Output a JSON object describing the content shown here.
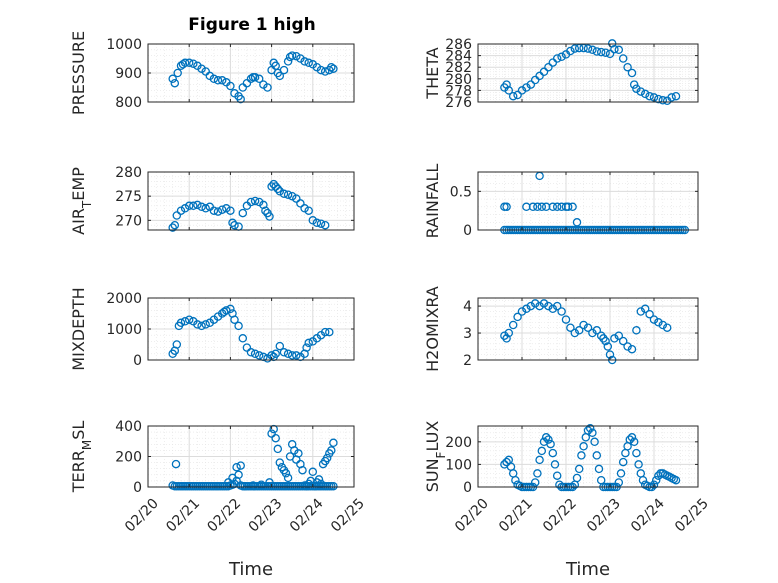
{
  "figure": {
    "title": "Figure 1 high",
    "marker_color": "#0072BD",
    "grid_color": "#dcdcdc",
    "axes_color": "#262626"
  },
  "chart_data": [
    {
      "id": "pressure",
      "type": "scatter",
      "ylabel": "PRESSURE",
      "ylim": [
        800,
        1000
      ],
      "yticks": [
        800,
        900,
        1000
      ],
      "ytick_labels": [
        "800",
        "900",
        "1000"
      ],
      "xlim": [
        0,
        5
      ],
      "grid": true,
      "show_xticklabels": false,
      "x": [
        0.6,
        0.65,
        0.72,
        0.8,
        0.85,
        0.9,
        1.0,
        1.1,
        1.2,
        1.3,
        1.4,
        1.5,
        1.6,
        1.7,
        1.8,
        1.9,
        2.0,
        2.1,
        2.2,
        2.25,
        2.3,
        2.4,
        2.5,
        2.55,
        2.6,
        2.7,
        2.8,
        2.9,
        3.0,
        3.05,
        3.1,
        3.15,
        3.2,
        3.3,
        3.4,
        3.45,
        3.5,
        3.6,
        3.7,
        3.8,
        3.9,
        4.0,
        4.1,
        4.2,
        4.3,
        4.4,
        4.45,
        4.5
      ],
      "y": [
        880,
        865,
        900,
        925,
        930,
        935,
        935,
        932,
        925,
        915,
        905,
        890,
        880,
        875,
        875,
        868,
        855,
        830,
        820,
        810,
        850,
        865,
        880,
        885,
        885,
        880,
        860,
        850,
        910,
        935,
        925,
        900,
        890,
        910,
        940,
        955,
        960,
        958,
        950,
        940,
        935,
        930,
        920,
        910,
        905,
        910,
        920,
        915
      ]
    },
    {
      "id": "theta",
      "type": "scatter",
      "ylabel": "THETA",
      "ylim": [
        276,
        286
      ],
      "yticks": [
        276,
        278,
        280,
        282,
        284,
        286
      ],
      "ytick_labels": [
        "276",
        "278",
        "280",
        "282",
        "284",
        "286"
      ],
      "xlim": [
        0,
        5
      ],
      "grid": true,
      "show_xticklabels": false,
      "x": [
        0.6,
        0.65,
        0.7,
        0.8,
        0.9,
        1.0,
        1.1,
        1.2,
        1.3,
        1.4,
        1.5,
        1.6,
        1.7,
        1.8,
        1.9,
        2.0,
        2.1,
        2.2,
        2.3,
        2.4,
        2.5,
        2.6,
        2.7,
        2.8,
        2.9,
        3.0,
        3.05,
        3.1,
        3.2,
        3.3,
        3.4,
        3.5,
        3.55,
        3.6,
        3.7,
        3.8,
        3.9,
        4.0,
        4.1,
        4.2,
        4.3,
        4.4,
        4.5
      ],
      "y": [
        278.5,
        279,
        278,
        277,
        277.2,
        278,
        278.5,
        279,
        279.8,
        280.5,
        281.2,
        282,
        282.8,
        283.5,
        283.8,
        284.2,
        284.8,
        285.2,
        285.3,
        285.3,
        285.2,
        285.0,
        284.7,
        284.6,
        284.5,
        284.3,
        286.1,
        285.1,
        285.0,
        283.5,
        282,
        281,
        279,
        278.3,
        277.8,
        277.4,
        277.0,
        276.8,
        276.5,
        276.3,
        276.2,
        276.8,
        277.0
      ]
    },
    {
      "id": "air_temp",
      "type": "scatter",
      "ylabel": "AIR",
      "ylabel_sub": "T",
      "ylabel_tail": "EMP",
      "ylim": [
        268,
        280
      ],
      "yticks": [
        270,
        275,
        280
      ],
      "ytick_labels": [
        "270",
        "275",
        "280"
      ],
      "xlim": [
        0,
        5
      ],
      "grid": true,
      "show_xticklabels": false,
      "x": [
        0.6,
        0.65,
        0.7,
        0.8,
        0.9,
        1.0,
        1.1,
        1.2,
        1.3,
        1.4,
        1.5,
        1.6,
        1.7,
        1.8,
        1.9,
        2.0,
        2.05,
        2.1,
        2.2,
        2.3,
        2.4,
        2.5,
        2.6,
        2.7,
        2.8,
        2.85,
        2.9,
        2.95,
        3.0,
        3.05,
        3.1,
        3.15,
        3.2,
        3.3,
        3.4,
        3.5,
        3.6,
        3.7,
        3.8,
        3.9,
        4.0,
        4.1,
        4.2,
        4.3
      ],
      "y": [
        268.5,
        269,
        271,
        272,
        272.5,
        273,
        273,
        273.2,
        272.8,
        272.5,
        272.8,
        272,
        271.8,
        272.2,
        272.5,
        272.0,
        269.5,
        269.0,
        268.7,
        271.5,
        273.0,
        273.8,
        274.0,
        273.8,
        273.2,
        272,
        271.5,
        270.8,
        277.0,
        277.5,
        277.0,
        276.5,
        276.0,
        275.5,
        275.3,
        275.0,
        274.5,
        273.5,
        272.5,
        272.0,
        270.0,
        269.5,
        269.3,
        269.0
      ]
    },
    {
      "id": "rainfall",
      "type": "scatter",
      "ylabel": "RAINFALL",
      "ylim": [
        0,
        0.75
      ],
      "yticks": [
        0,
        0.5
      ],
      "ytick_labels": [
        "0",
        "0.5"
      ],
      "xlim": [
        0,
        5
      ],
      "grid": true,
      "show_xticklabels": false,
      "x": [
        0.6,
        0.65,
        0.7,
        0.75,
        0.8,
        0.85,
        0.9,
        0.95,
        1.0,
        1.05,
        1.1,
        1.15,
        1.2,
        1.25,
        1.3,
        1.35,
        1.4,
        1.45,
        1.5,
        1.55,
        1.6,
        1.65,
        1.7,
        1.75,
        1.8,
        1.85,
        1.9,
        1.95,
        2.0,
        2.05,
        2.1,
        2.15,
        2.2,
        2.25,
        2.3,
        2.35,
        2.4,
        2.45,
        2.5,
        2.55,
        2.6,
        2.65,
        2.7,
        2.75,
        2.8,
        2.85,
        2.9,
        2.95,
        3.0,
        3.05,
        3.1,
        3.15,
        3.2,
        3.25,
        3.3,
        3.35,
        3.4,
        3.45,
        3.5,
        3.55,
        3.6,
        3.65,
        3.7,
        3.75,
        3.8,
        3.85,
        3.9,
        3.95,
        4.0,
        4.05,
        4.1,
        4.15,
        4.2,
        4.25,
        4.3,
        4.35,
        4.4,
        4.45,
        4.5,
        4.55,
        4.6,
        4.65,
        4.7,
        0.6,
        0.65,
        1.1,
        1.25,
        1.35,
        1.45,
        1.55,
        1.7,
        1.8,
        1.9,
        2.0,
        2.05,
        2.15,
        2.25,
        1.4
      ],
      "y": [
        0,
        0,
        0,
        0,
        0,
        0,
        0,
        0,
        0,
        0,
        0,
        0,
        0,
        0,
        0,
        0,
        0,
        0,
        0,
        0,
        0,
        0,
        0,
        0,
        0,
        0,
        0,
        0,
        0,
        0,
        0,
        0,
        0,
        0,
        0,
        0,
        0,
        0,
        0,
        0,
        0,
        0,
        0,
        0,
        0,
        0,
        0,
        0,
        0,
        0,
        0,
        0,
        0,
        0,
        0,
        0,
        0,
        0,
        0,
        0,
        0,
        0,
        0,
        0,
        0,
        0,
        0,
        0,
        0,
        0,
        0,
        0,
        0,
        0,
        0,
        0,
        0,
        0,
        0,
        0,
        0,
        0,
        0,
        0.3,
        0.3,
        0.3,
        0.3,
        0.3,
        0.3,
        0.3,
        0.3,
        0.3,
        0.3,
        0.3,
        0.3,
        0.3,
        0.1,
        0.7
      ]
    },
    {
      "id": "mixdepth",
      "type": "scatter",
      "ylabel": "MIXDEPTH",
      "ylim": [
        0,
        2000
      ],
      "yticks": [
        0,
        1000,
        2000
      ],
      "ytick_labels": [
        "0",
        "1000",
        "2000"
      ],
      "xlim": [
        0,
        5
      ],
      "grid": true,
      "show_xticklabels": false,
      "x": [
        0.6,
        0.65,
        0.7,
        0.75,
        0.8,
        0.9,
        1.0,
        1.1,
        1.2,
        1.3,
        1.4,
        1.5,
        1.6,
        1.7,
        1.8,
        1.85,
        1.9,
        2.0,
        2.05,
        2.1,
        2.2,
        2.3,
        2.4,
        2.5,
        2.6,
        2.7,
        2.8,
        2.9,
        3.0,
        3.05,
        3.1,
        3.2,
        3.3,
        3.4,
        3.5,
        3.6,
        3.7,
        3.8,
        3.85,
        3.9,
        4.0,
        4.1,
        4.2,
        4.3,
        4.4
      ],
      "y": [
        200,
        300,
        500,
        1100,
        1200,
        1250,
        1300,
        1250,
        1150,
        1100,
        1150,
        1200,
        1300,
        1400,
        1500,
        1550,
        1600,
        1650,
        1500,
        1300,
        1100,
        700,
        400,
        250,
        200,
        150,
        100,
        50,
        150,
        100,
        200,
        450,
        250,
        200,
        150,
        150,
        100,
        200,
        400,
        550,
        600,
        700,
        800,
        900,
        900
      ]
    },
    {
      "id": "h2omixra",
      "type": "scatter",
      "ylabel": "H2OMIXRA",
      "ylim": [
        2,
        4.3
      ],
      "yticks": [
        2,
        3,
        4
      ],
      "ytick_labels": [
        "2",
        "3",
        "4"
      ],
      "xlim": [
        0,
        5
      ],
      "grid": true,
      "show_xticklabels": false,
      "x": [
        0.6,
        0.65,
        0.7,
        0.8,
        0.9,
        1.0,
        1.1,
        1.2,
        1.3,
        1.4,
        1.5,
        1.6,
        1.7,
        1.8,
        1.9,
        2.0,
        2.1,
        2.2,
        2.3,
        2.4,
        2.5,
        2.6,
        2.7,
        2.8,
        2.85,
        2.9,
        2.95,
        3.0,
        3.05,
        3.1,
        3.2,
        3.3,
        3.4,
        3.5,
        3.6,
        3.7,
        3.8,
        3.9,
        4.0,
        4.1,
        4.2,
        4.3
      ],
      "y": [
        2.9,
        2.8,
        3.0,
        3.3,
        3.6,
        3.8,
        3.9,
        4.0,
        4.1,
        4.0,
        4.1,
        4.0,
        3.9,
        4.0,
        3.8,
        3.5,
        3.2,
        3.0,
        3.1,
        3.3,
        3.2,
        3.0,
        3.1,
        2.9,
        2.8,
        2.7,
        2.5,
        2.2,
        2.0,
        2.8,
        2.9,
        2.7,
        2.5,
        2.4,
        3.1,
        3.8,
        3.9,
        3.7,
        3.5,
        3.4,
        3.3,
        3.2
      ]
    },
    {
      "id": "terr_msl",
      "type": "scatter",
      "ylabel": "TERR",
      "ylabel_sub": "M",
      "ylabel_tail": "SL",
      "ylim": [
        0,
        400
      ],
      "yticks": [
        0,
        200,
        400
      ],
      "ytick_labels": [
        "0",
        "200",
        "400"
      ],
      "xlim": [
        0,
        5
      ],
      "grid": true,
      "show_xticklabels": true,
      "xticks": [
        0,
        1,
        2,
        3,
        4,
        5
      ],
      "xtick_labels": [
        "02/20",
        "02/21",
        "02/22",
        "02/23",
        "02/24",
        "02/25"
      ],
      "xlabel": "Time",
      "x": [
        0.6,
        0.65,
        0.7,
        0.75,
        0.8,
        0.85,
        0.9,
        0.95,
        1.0,
        1.05,
        1.1,
        1.15,
        1.2,
        1.25,
        1.3,
        1.35,
        1.4,
        1.45,
        1.5,
        1.55,
        1.6,
        1.65,
        1.7,
        1.75,
        1.8,
        1.85,
        1.9,
        1.95,
        2.0,
        2.05,
        2.1,
        2.15,
        2.2,
        2.25,
        2.3,
        2.35,
        2.4,
        2.45,
        2.5,
        2.55,
        2.6,
        2.65,
        2.7,
        2.75,
        2.8,
        2.85,
        2.9,
        2.95,
        3.0,
        3.05,
        3.1,
        3.15,
        3.2,
        3.25,
        3.3,
        3.35,
        3.4,
        3.45,
        3.5,
        3.55,
        3.6,
        3.65,
        3.7,
        3.75,
        3.8,
        3.85,
        3.9,
        3.95,
        4.0,
        4.05,
        4.1,
        4.15,
        4.2,
        4.25,
        4.3,
        4.35,
        4.4,
        4.45,
        4.5,
        0.68,
        1.95,
        2.05,
        2.15,
        2.25,
        2.35,
        2.55,
        2.75,
        2.95,
        3.0,
        3.05,
        3.1,
        3.15,
        3.2,
        3.25,
        3.3,
        3.35,
        3.4,
        3.45,
        3.5,
        3.55,
        3.6,
        3.65,
        3.7,
        3.75,
        3.8,
        3.85,
        3.9,
        3.95,
        4.0,
        4.05,
        4.1,
        4.15,
        4.2,
        4.25,
        4.3,
        4.35,
        4.4,
        4.45,
        4.5
      ],
      "y": [
        10,
        5,
        5,
        5,
        5,
        5,
        5,
        5,
        5,
        5,
        5,
        5,
        5,
        5,
        5,
        5,
        5,
        5,
        5,
        5,
        5,
        5,
        5,
        5,
        5,
        5,
        5,
        5,
        10,
        15,
        20,
        40,
        80,
        10,
        5,
        5,
        5,
        5,
        5,
        5,
        5,
        5,
        5,
        5,
        5,
        5,
        5,
        5,
        5,
        5,
        5,
        5,
        5,
        5,
        5,
        5,
        5,
        5,
        5,
        5,
        5,
        5,
        5,
        5,
        5,
        5,
        5,
        5,
        5,
        5,
        5,
        5,
        5,
        5,
        5,
        5,
        5,
        5,
        5,
        150,
        30,
        60,
        130,
        140,
        5,
        10,
        15,
        30,
        350,
        380,
        320,
        250,
        160,
        130,
        110,
        90,
        60,
        200,
        280,
        240,
        180,
        220,
        150,
        110,
        10,
        5,
        20,
        40,
        100,
        5,
        30,
        50,
        20,
        150,
        170,
        190,
        220,
        240,
        290
      ]
    },
    {
      "id": "sun_flux",
      "type": "scatter",
      "ylabel": "SUN",
      "ylabel_sub": "F",
      "ylabel_tail": "LUX",
      "ylim": [
        0,
        270
      ],
      "yticks": [
        0,
        100,
        200
      ],
      "ytick_labels": [
        "0",
        "100",
        "200"
      ],
      "xlim": [
        0,
        5
      ],
      "grid": true,
      "show_xticklabels": true,
      "xticks": [
        0,
        1,
        2,
        3,
        4,
        5
      ],
      "xtick_labels": [
        "02/20",
        "02/21",
        "02/22",
        "02/23",
        "02/24",
        "02/25"
      ],
      "xlabel": "Time",
      "x": [
        0.6,
        0.65,
        0.7,
        0.75,
        0.8,
        0.85,
        0.9,
        0.95,
        1.0,
        1.05,
        1.1,
        1.15,
        1.2,
        1.25,
        1.3,
        1.35,
        1.4,
        1.45,
        1.5,
        1.55,
        1.6,
        1.65,
        1.7,
        1.75,
        1.8,
        1.85,
        1.9,
        1.95,
        2.0,
        2.05,
        2.1,
        2.15,
        2.2,
        2.25,
        2.3,
        2.35,
        2.4,
        2.45,
        2.5,
        2.55,
        2.6,
        2.65,
        2.7,
        2.75,
        2.8,
        2.85,
        2.9,
        2.95,
        3.0,
        3.05,
        3.1,
        3.15,
        3.2,
        3.25,
        3.3,
        3.35,
        3.4,
        3.45,
        3.5,
        3.55,
        3.6,
        3.65,
        3.7,
        3.75,
        3.8,
        3.85,
        3.9,
        3.95,
        4.0,
        4.05,
        4.1,
        4.15,
        4.2,
        4.25,
        4.3,
        4.35,
        4.4,
        4.45,
        4.5
      ],
      "y": [
        100,
        110,
        120,
        90,
        60,
        30,
        10,
        5,
        0,
        0,
        0,
        0,
        0,
        0,
        20,
        60,
        120,
        160,
        200,
        220,
        210,
        190,
        150,
        100,
        50,
        10,
        0,
        0,
        0,
        0,
        0,
        0,
        10,
        40,
        80,
        140,
        180,
        220,
        250,
        260,
        240,
        200,
        140,
        80,
        30,
        0,
        0,
        0,
        0,
        0,
        0,
        0,
        20,
        60,
        110,
        150,
        180,
        210,
        220,
        200,
        150,
        100,
        60,
        30,
        10,
        5,
        0,
        0,
        10,
        30,
        50,
        60,
        60,
        55,
        50,
        45,
        40,
        35,
        30
      ]
    }
  ]
}
